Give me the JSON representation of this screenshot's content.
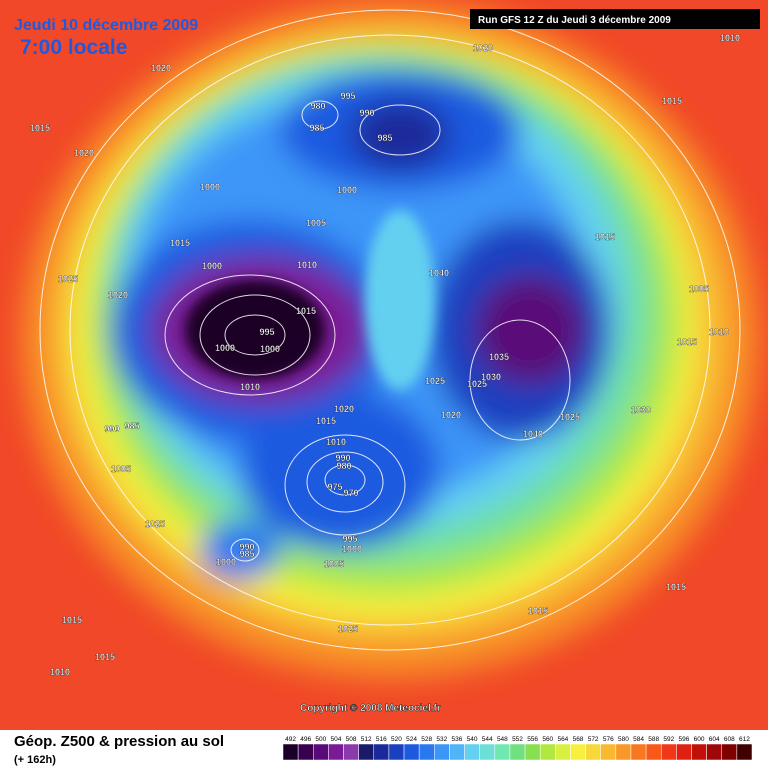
{
  "header": {
    "date": "Jeudi 10 décembre 2009",
    "time": "7:00 locale",
    "run": "Run GFS 12 Z du Jeudi 3 décembre 2009"
  },
  "map": {
    "isobar_labels": [
      1020,
      1010,
      1020,
      1015,
      995,
      980,
      990,
      985,
      985,
      1015,
      1020,
      1000,
      1000,
      1005,
      1015,
      1015,
      1000,
      1010,
      1040,
      1025,
      1020,
      1005,
      1000,
      1015,
      995,
      1010,
      1015,
      1000,
      1035,
      1030,
      1025,
      1025,
      1010,
      1020,
      1030,
      1025,
      1020,
      1015,
      985,
      990,
      1040,
      1010,
      990,
      980,
      975,
      970,
      1005,
      1025,
      995,
      990,
      1000,
      985,
      1000,
      1005,
      1015,
      1015,
      1015,
      1025,
      1015,
      1010
    ],
    "copyright": "Copyright © 2008 Meteociel.fr"
  },
  "footer": {
    "title": "Géop. Z500 & pression au sol",
    "lead": "(+ 162h)"
  },
  "scale": {
    "values": [
      492,
      496,
      500,
      504,
      508,
      512,
      516,
      520,
      524,
      528,
      532,
      536,
      540,
      544,
      548,
      552,
      556,
      560,
      564,
      568,
      572,
      576,
      580,
      584,
      588,
      592,
      596,
      600,
      604,
      608,
      612
    ],
    "colors": [
      "#1a0026",
      "#3a0050",
      "#5a0a78",
      "#7a1a96",
      "#8a3aaa",
      "#1a1a6a",
      "#1a2a9a",
      "#1a40c0",
      "#1e5ae0",
      "#2a78f0",
      "#3c96f8",
      "#50b4f8",
      "#64d0f0",
      "#6ce0d8",
      "#70e8b0",
      "#70e080",
      "#88e050",
      "#b0e840",
      "#d8f040",
      "#f8f040",
      "#f8d838",
      "#f8b830",
      "#f89828",
      "#f87820",
      "#f85818",
      "#f03818",
      "#e02010",
      "#c01008",
      "#a00808",
      "#800000",
      "#400000"
    ]
  }
}
